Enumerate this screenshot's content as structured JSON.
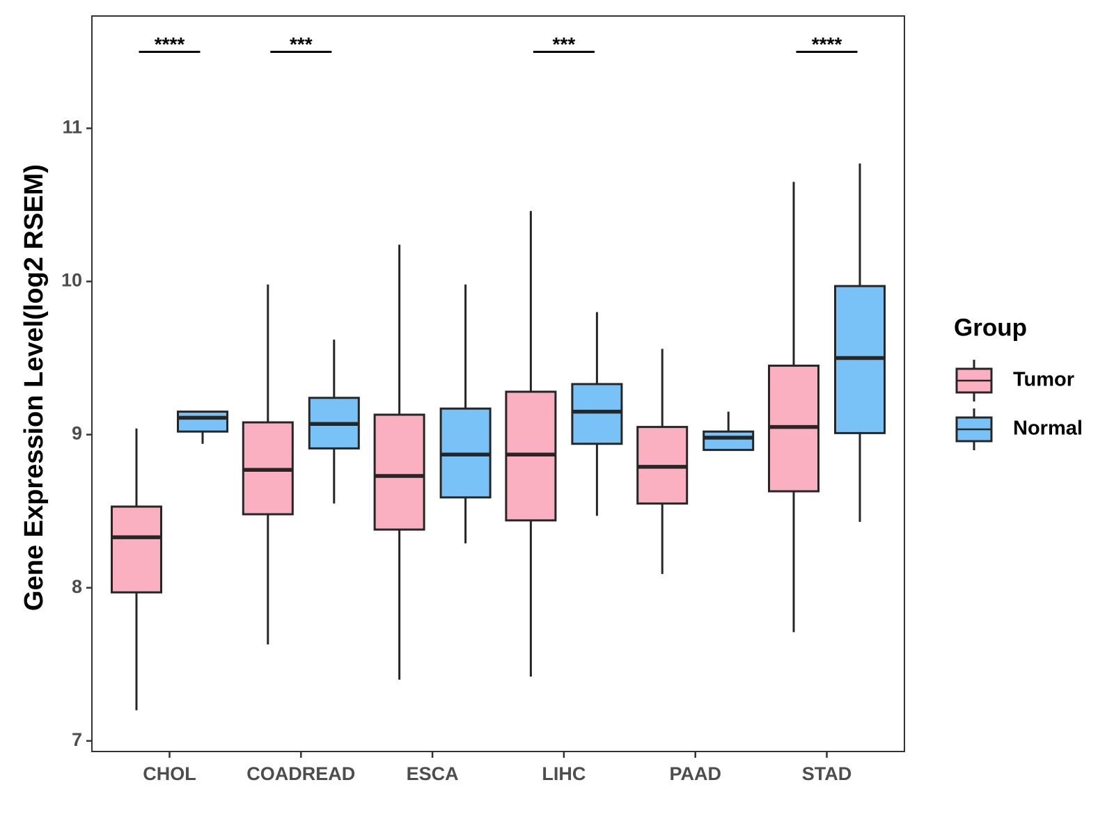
{
  "chart_data": {
    "type": "boxplot",
    "title": "",
    "xlabel": "",
    "ylabel": "Gene Expression Level(log2 RSEM)",
    "ylim": [
      6.95,
      11.75
    ],
    "yticks": [
      7,
      8,
      9,
      10,
      11
    ],
    "ytick_labels": [
      "7",
      "8",
      "9",
      "10",
      "11"
    ],
    "grid": false,
    "categories": [
      "CHOL",
      "COADREAD",
      "ESCA",
      "LIHC",
      "PAAD",
      "STAD"
    ],
    "legend": {
      "title": "Group",
      "position": "right",
      "entries": [
        {
          "label": "Tumor",
          "color": "#FBB0C1"
        },
        {
          "label": "Normal",
          "color": "#78C2F7"
        }
      ]
    },
    "series": [
      {
        "name": "Tumor",
        "color": "#FBB0C1",
        "boxes": [
          {
            "min": 7.2,
            "q1": 7.97,
            "median": 8.33,
            "q3": 8.53,
            "max": 9.04
          },
          {
            "min": 7.63,
            "q1": 8.48,
            "median": 8.77,
            "q3": 9.08,
            "max": 9.98
          },
          {
            "min": 7.4,
            "q1": 8.38,
            "median": 8.73,
            "q3": 9.13,
            "max": 10.24
          },
          {
            "min": 7.42,
            "q1": 8.44,
            "median": 8.87,
            "q3": 9.28,
            "max": 10.46
          },
          {
            "min": 8.09,
            "q1": 8.55,
            "median": 8.79,
            "q3": 9.05,
            "max": 9.56
          },
          {
            "min": 7.71,
            "q1": 8.63,
            "median": 9.05,
            "q3": 9.45,
            "max": 10.65
          }
        ]
      },
      {
        "name": "Normal",
        "color": "#78C2F7",
        "boxes": [
          {
            "min": 8.94,
            "q1": 9.02,
            "median": 9.11,
            "q3": 9.15,
            "max": 9.15
          },
          {
            "min": 8.55,
            "q1": 8.91,
            "median": 9.07,
            "q3": 9.24,
            "max": 9.62
          },
          {
            "min": 8.29,
            "q1": 8.59,
            "median": 8.87,
            "q3": 9.17,
            "max": 9.98
          },
          {
            "min": 8.47,
            "q1": 8.94,
            "median": 9.15,
            "q3": 9.33,
            "max": 9.8
          },
          {
            "min": 8.9,
            "q1": 8.9,
            "median": 8.98,
            "q3": 9.02,
            "max": 9.15
          },
          {
            "min": 8.43,
            "q1": 9.01,
            "median": 9.5,
            "q3": 9.97,
            "max": 10.77
          }
        ]
      }
    ],
    "significance": [
      {
        "category": "CHOL",
        "label": "****"
      },
      {
        "category": "COADREAD",
        "label": "***"
      },
      {
        "category": "LIHC",
        "label": "***"
      },
      {
        "category": "STAD",
        "label": "****"
      }
    ]
  }
}
